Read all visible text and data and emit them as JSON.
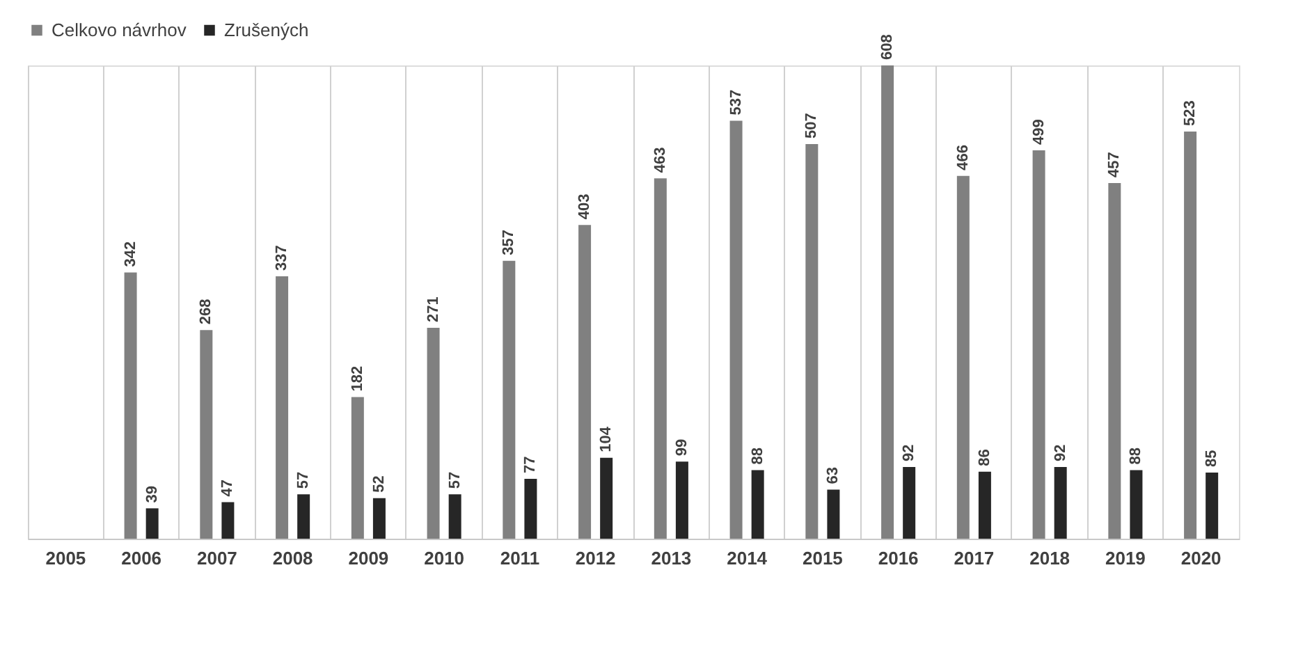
{
  "chart_data": {
    "type": "bar",
    "categories": [
      "2005",
      "2006",
      "2007",
      "2008",
      "2009",
      "2010",
      "2011",
      "2012",
      "2013",
      "2014",
      "2015",
      "2016",
      "2017",
      "2018",
      "2019",
      "2020"
    ],
    "series": [
      {
        "name": "Celkovo návrhov",
        "color": "#808080",
        "values": [
          null,
          342,
          268,
          337,
          182,
          271,
          357,
          403,
          463,
          537,
          507,
          608,
          466,
          499,
          457,
          523
        ]
      },
      {
        "name": "Zrušených",
        "color": "#262626",
        "values": [
          null,
          39,
          47,
          57,
          52,
          57,
          77,
          104,
          99,
          88,
          63,
          92,
          86,
          92,
          88,
          85
        ]
      }
    ],
    "data_labels": true,
    "grid": "x",
    "legend": "top"
  }
}
